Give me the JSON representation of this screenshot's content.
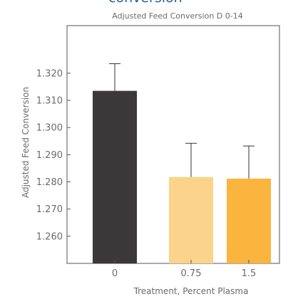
{
  "heading_fragment": "conversion",
  "chart_data": {
    "type": "bar",
    "title": "Adjusted Feed Conversion D 0-14",
    "xlabel": "Treatment, Percent Plasma",
    "ylabel": "Adjusted Feed Conversion",
    "categories": [
      "0",
      "0.75",
      "1.5"
    ],
    "values": [
      1.3135,
      1.2818,
      1.2812
    ],
    "error_upper": [
      1.3235,
      1.2942,
      1.2932
    ],
    "ylim": [
      1.25,
      1.3375
    ],
    "yticks": [
      "1.260",
      "1.270",
      "1.280",
      "1.290",
      "1.300",
      "1.310",
      "1.320"
    ],
    "grid": false,
    "bar_colors": [
      "#3b3839",
      "#fcd38a",
      "#fbb43e"
    ]
  }
}
